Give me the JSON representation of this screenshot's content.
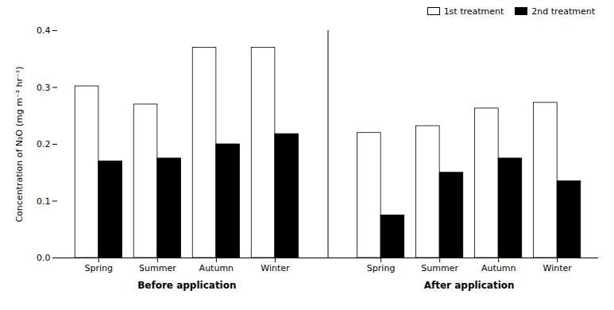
{
  "chart_data": {
    "type": "bar",
    "categories": [
      "Spring",
      "Summer",
      "Autumn",
      "Winter",
      "Spring",
      "Summer",
      "Autumn",
      "Winter"
    ],
    "series": [
      {
        "name": "1st treatment",
        "color": "white",
        "values": [
          0.302,
          0.27,
          0.37,
          0.37,
          0.22,
          0.232,
          0.263,
          0.273
        ]
      },
      {
        "name": "2nd treatment",
        "color": "black",
        "values": [
          0.17,
          0.175,
          0.2,
          0.218,
          0.075,
          0.15,
          0.175,
          0.135
        ]
      }
    ],
    "annotations": [
      "Before application",
      "After application"
    ],
    "ylabel": "Concentration of N₂O (mg m⁻² hr⁻¹)",
    "ylim": [
      0,
      0.4
    ],
    "yticks": [
      {
        "value": 0.0,
        "label": "0.0"
      },
      0.1,
      0.2,
      0.3,
      0.4
    ],
    "legend": "upper right",
    "grid": false
  }
}
